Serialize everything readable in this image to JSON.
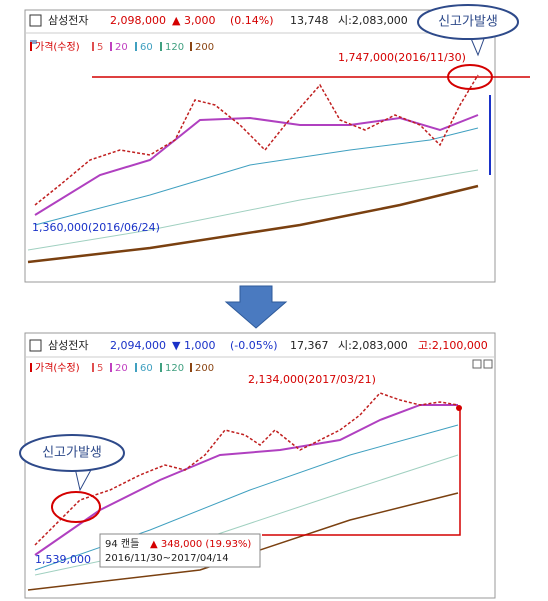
{
  "panels": [
    {
      "header": {
        "name": "삼성전자",
        "price": "2,098,000",
        "change": "▲ 3,000",
        "change_pct": "(0.14%)",
        "volume": "13,748",
        "open": "시:2,083,000"
      },
      "legend": [
        "가격(수정)",
        "5",
        "20",
        "60",
        "120",
        "200"
      ],
      "high_label": "1,747,000(2016/11/30)",
      "low_label": "1,360,000(2016/06/24)"
    },
    {
      "header": {
        "name": "삼성전자",
        "price": "2,094,000",
        "change": "▼ 1,000",
        "change_pct": "(-0.05%)",
        "volume": "17,367",
        "open": "시:2,083,000",
        "high": "고:2,100,000"
      },
      "legend": [
        "가격(수정)",
        "5",
        "20",
        "60",
        "120",
        "200"
      ],
      "high_label": "2,134,000(2017/03/21)",
      "low_label": "1,539,000",
      "tooltip": {
        "count": "94 캔들",
        "change": "▲ 348,000 (19.93%)",
        "period": "2016/11/30~2017/04/14"
      }
    }
  ],
  "callouts": [
    "신고가발생",
    "신고가발생"
  ]
}
